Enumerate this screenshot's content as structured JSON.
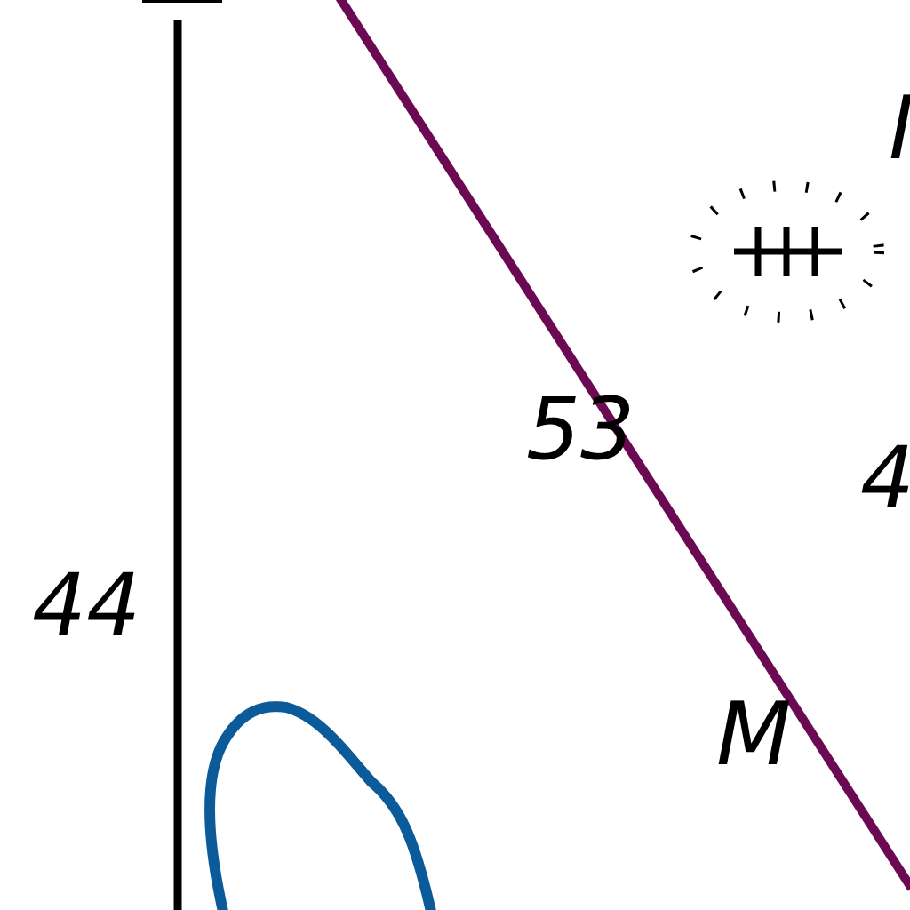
{
  "colors": {
    "background": "#ffffff",
    "route_line": "#6b0a52",
    "depth_contour": "#0b5a9a",
    "black_line": "#000000",
    "text": "#000000"
  },
  "soundings": [
    {
      "label": "44"
    },
    {
      "label": "53"
    },
    {
      "label": "4"
    }
  ],
  "seabed_labels": [
    {
      "label": "M"
    },
    {
      "label": "M"
    }
  ],
  "symbols": {
    "wreck": "dangerous-wreck-symbol"
  }
}
